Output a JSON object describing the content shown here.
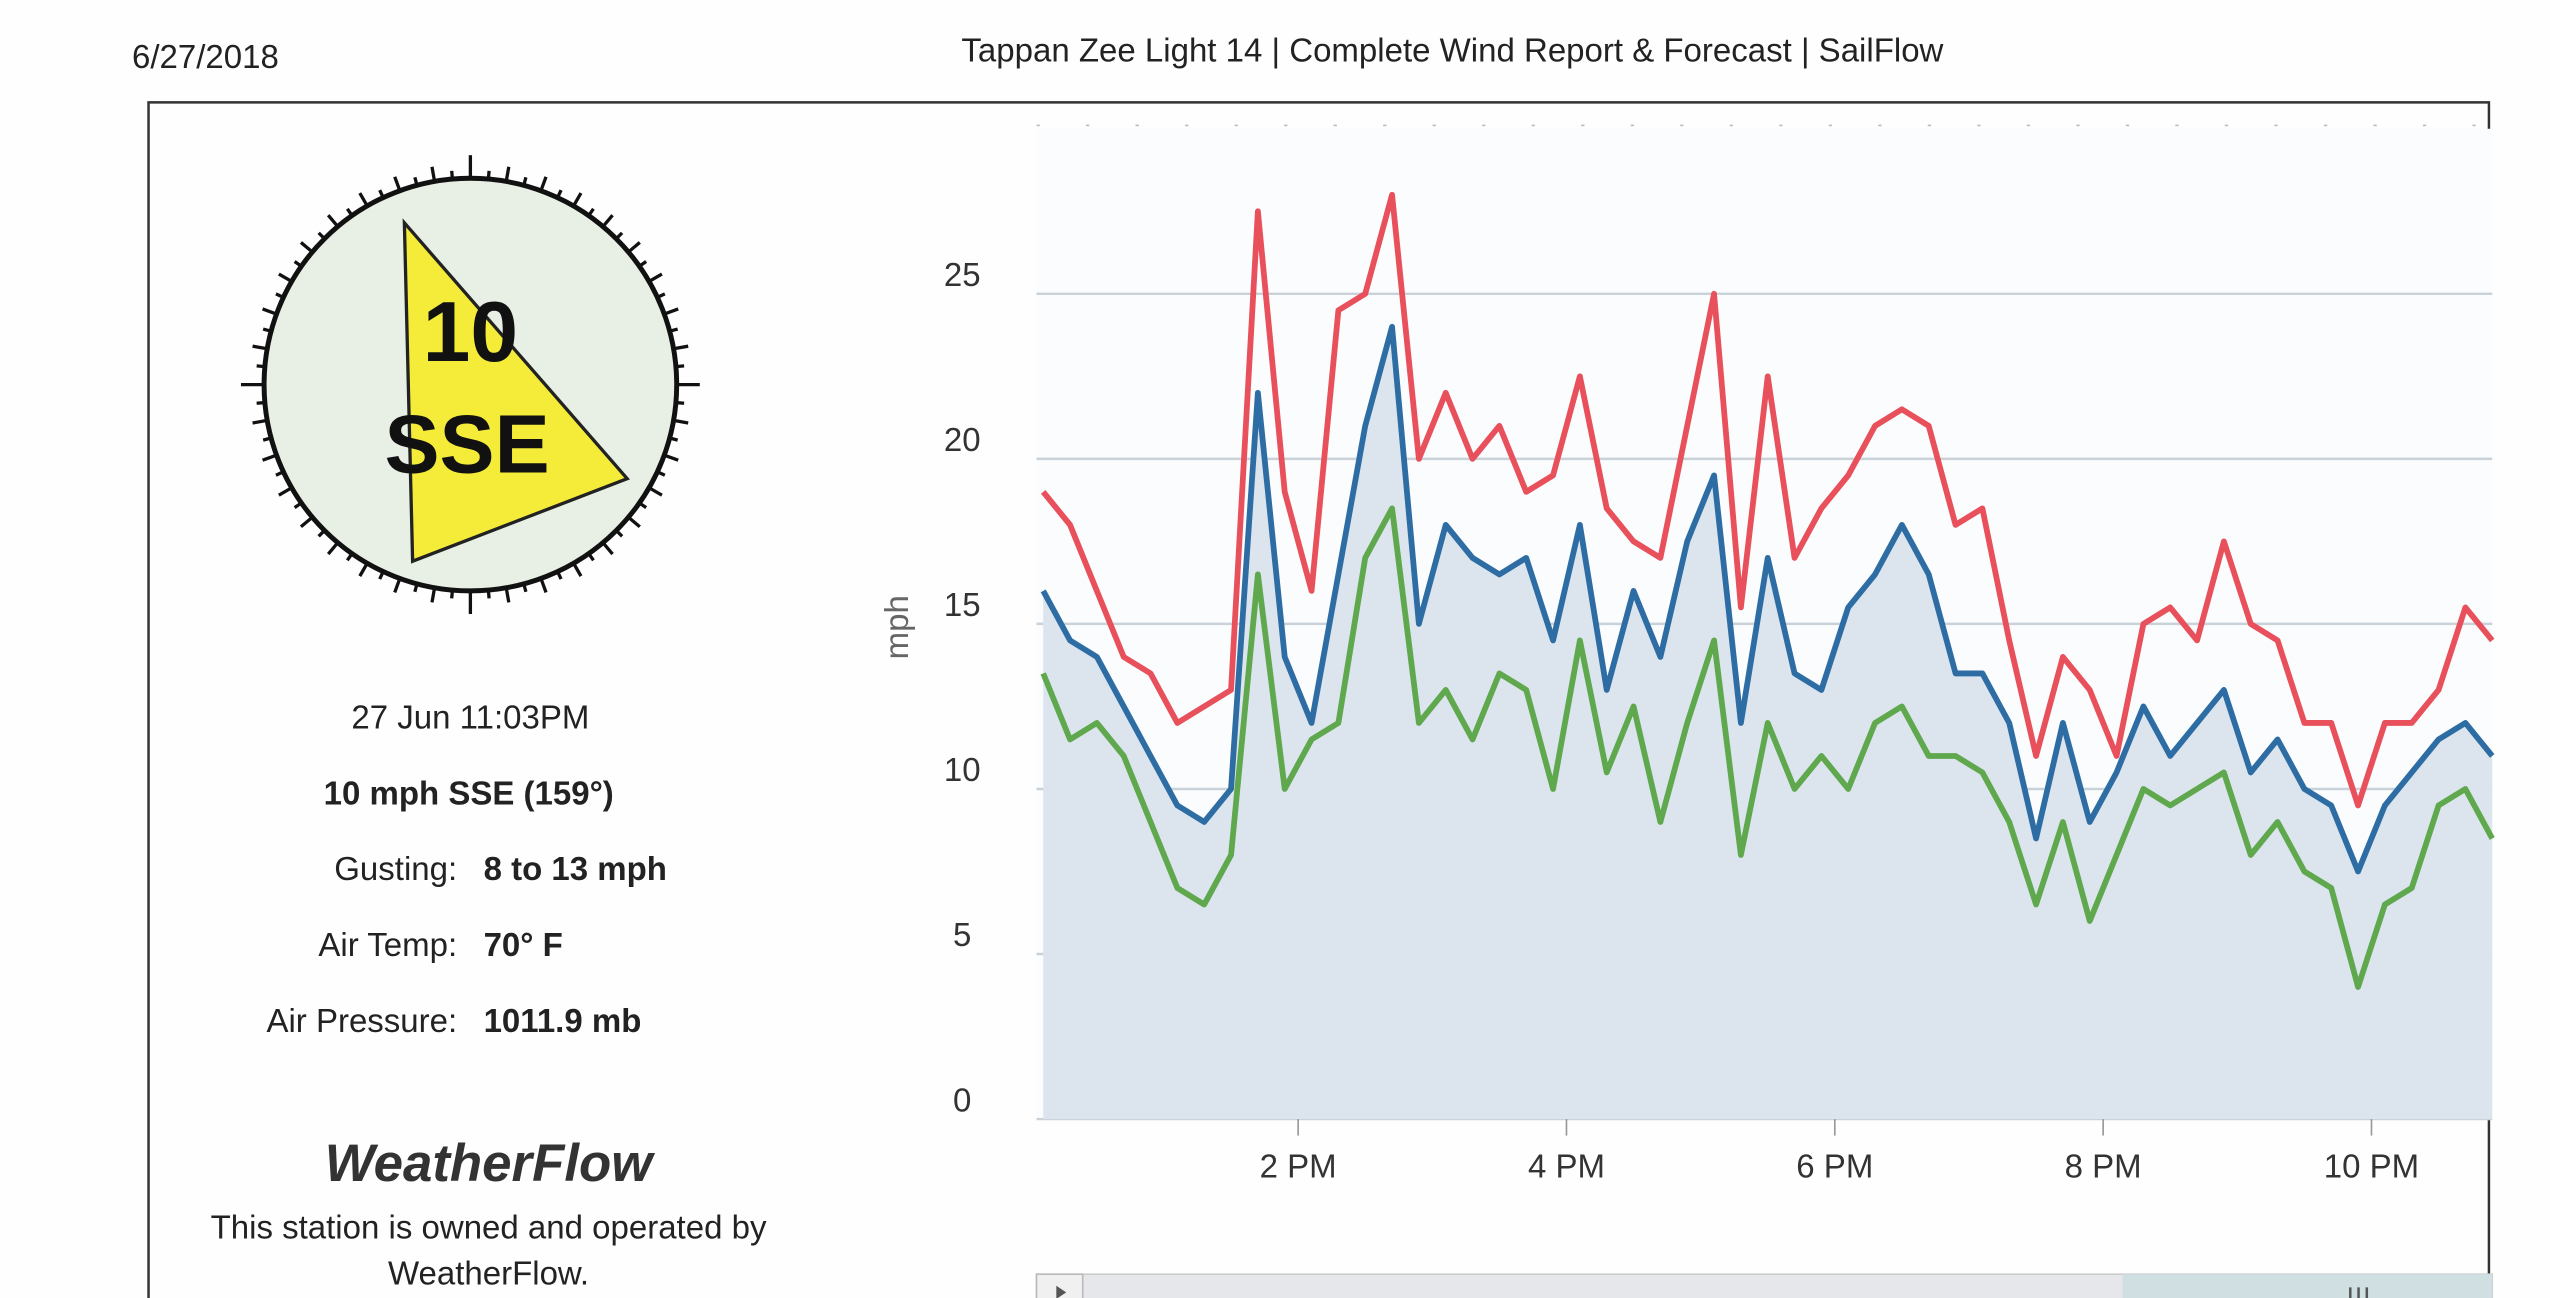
{
  "header": {
    "date": "6/27/2018",
    "title": "Tappan Zee Light 14 | Complete Wind Report & Forecast | SailFlow"
  },
  "station": {
    "compass": {
      "speed": "10",
      "direction": "SSE"
    },
    "time": "27 Jun 11:03PM",
    "summary": "10 mph SSE (159°)",
    "rows": [
      {
        "label": "Gusting:",
        "value": "8 to 13 mph"
      },
      {
        "label": "Air Temp:",
        "value": "70° F"
      },
      {
        "label": "Air Pressure:",
        "value": "1011.9 mb"
      }
    ],
    "logo": "WeatherFlow",
    "note": [
      "This station is owned and operated by",
      "WeatherFlow."
    ]
  },
  "chart_data": {
    "type": "line",
    "ylabel": "mph",
    "x": [
      12.1,
      12.3,
      12.5,
      12.7,
      12.9,
      13.1,
      13.3,
      13.5,
      13.7,
      13.9,
      14.1,
      14.3,
      14.5,
      14.7,
      14.9,
      15.1,
      15.3,
      15.5,
      15.7,
      15.9,
      16.1,
      16.3,
      16.5,
      16.7,
      16.9,
      17.1,
      17.3,
      17.5,
      17.7,
      17.9,
      18.1,
      18.3,
      18.5,
      18.7,
      18.9,
      19.1,
      19.3,
      19.5,
      19.7,
      19.9,
      20.1,
      20.3,
      20.5,
      20.7,
      20.9,
      21.1,
      21.3,
      21.5,
      21.7,
      21.9,
      22.1,
      22.3,
      22.5,
      22.7,
      22.9
    ],
    "series": [
      {
        "color": "#e8505b",
        "values": [
          19,
          18,
          16,
          14,
          13.5,
          12,
          12.5,
          13,
          27.5,
          19,
          16,
          24.5,
          25,
          28,
          20,
          22,
          20,
          21,
          19,
          19.5,
          22.5,
          18.5,
          17.5,
          17,
          21,
          25,
          15.5,
          22.5,
          17,
          18.5,
          19.5,
          21,
          21.5,
          21,
          18,
          18.5,
          14.5,
          11,
          14,
          13,
          11,
          15,
          15.5,
          14.5,
          17.5,
          15,
          14.5,
          12,
          12,
          9.5,
          12,
          12,
          13,
          15.5,
          14.5
        ]
      },
      {
        "color": "#2e6da4",
        "values": [
          16,
          14.5,
          14,
          12.5,
          11,
          9.5,
          9,
          10,
          22,
          14,
          12,
          16.5,
          21,
          24,
          15,
          18,
          17,
          16.5,
          17,
          14.5,
          18,
          13,
          16,
          14,
          17.5,
          19.5,
          12,
          17,
          13.5,
          13,
          15.5,
          16.5,
          18,
          16.5,
          13.5,
          13.5,
          12,
          8.5,
          12,
          9,
          10.5,
          12.5,
          11,
          12,
          13,
          10.5,
          11.5,
          10,
          9.5,
          7.5,
          9.5,
          10.5,
          11.5,
          12,
          11
        ],
        "fill": "#dce5ee"
      },
      {
        "color": "#5fa84d",
        "values": [
          13.5,
          11.5,
          12,
          11,
          9,
          7,
          6.5,
          8,
          16.5,
          10,
          11.5,
          12,
          17,
          18.5,
          12,
          13,
          11.5,
          13.5,
          13,
          10,
          14.5,
          10.5,
          12.5,
          9,
          12,
          14.5,
          8,
          12,
          10,
          11,
          10,
          12,
          12.5,
          11,
          11,
          10.5,
          9,
          6.5,
          9,
          6,
          8,
          10,
          9.5,
          10,
          10.5,
          8,
          9,
          7.5,
          7,
          4,
          6.5,
          7,
          9.5,
          10,
          8.5
        ]
      }
    ],
    "xlim": [
      12.05,
      22.9
    ],
    "xticks": [
      {
        "value": 14,
        "label": "2 PM"
      },
      {
        "value": 16,
        "label": "4 PM"
      },
      {
        "value": 18,
        "label": "6 PM"
      },
      {
        "value": 20,
        "label": "8 PM"
      },
      {
        "value": 22,
        "label": "10 PM"
      }
    ],
    "ylim": [
      0,
      30
    ],
    "yticks": [
      0,
      5,
      10,
      15,
      20,
      25
    ],
    "grid": true
  }
}
